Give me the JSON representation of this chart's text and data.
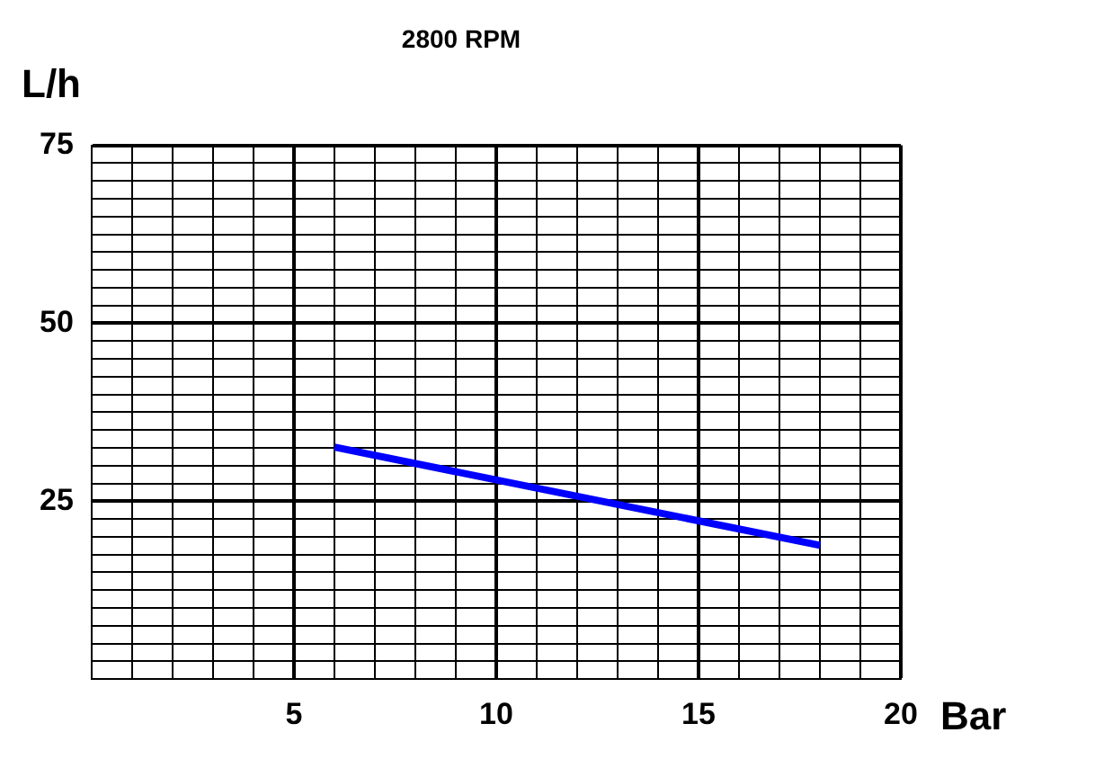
{
  "chart_data": {
    "type": "line",
    "title": "2800 RPM",
    "xlabel": "Bar",
    "ylabel": "L/h",
    "series": [
      {
        "color": "#0000ff",
        "x": [
          6,
          18
        ],
        "values": [
          32.6,
          18.8
        ]
      }
    ],
    "xlim": [
      0,
      20
    ],
    "xticks": [
      {
        "value": 0,
        "label": null
      },
      {
        "value": 1,
        "label": null
      },
      {
        "value": 2,
        "label": null
      },
      {
        "value": 3,
        "label": null
      },
      {
        "value": 4,
        "label": null
      },
      5,
      {
        "value": 6,
        "label": null
      },
      {
        "value": 7,
        "label": null
      },
      {
        "value": 8,
        "label": null
      },
      {
        "value": 9,
        "label": null
      },
      10,
      {
        "value": 11,
        "label": null
      },
      {
        "value": 12,
        "label": null
      },
      {
        "value": 13,
        "label": null
      },
      {
        "value": 14,
        "label": null
      },
      15,
      {
        "value": 16,
        "label": null
      },
      {
        "value": 17,
        "label": null
      },
      {
        "value": 18,
        "label": null
      },
      {
        "value": 19,
        "label": null
      },
      20
    ],
    "ylim": [
      0,
      75
    ],
    "yticks": [
      {
        "value": 0,
        "label": null
      },
      {
        "value": 2.5,
        "label": null
      },
      {
        "value": 5,
        "label": null
      },
      {
        "value": 7.5,
        "label": null
      },
      {
        "value": 10,
        "label": null
      },
      {
        "value": 12.5,
        "label": null
      },
      {
        "value": 15,
        "label": null
      },
      {
        "value": 17.5,
        "label": null
      },
      {
        "value": 20,
        "label": null
      },
      {
        "value": 22.5,
        "label": null
      },
      25,
      {
        "value": 27.5,
        "label": null
      },
      {
        "value": 30,
        "label": null
      },
      {
        "value": 32.5,
        "label": null
      },
      {
        "value": 35,
        "label": null
      },
      {
        "value": 37.5,
        "label": null
      },
      {
        "value": 40,
        "label": null
      },
      {
        "value": 42.5,
        "label": null
      },
      {
        "value": 45,
        "label": null
      },
      {
        "value": 47.5,
        "label": null
      },
      50,
      {
        "value": 52.5,
        "label": null
      },
      {
        "value": 55,
        "label": null
      },
      {
        "value": 57.5,
        "label": null
      },
      {
        "value": 60,
        "label": null
      },
      {
        "value": 62.5,
        "label": null
      },
      {
        "value": 65,
        "label": null
      },
      {
        "value": 67.5,
        "label": null
      },
      {
        "value": 70,
        "label": null
      },
      {
        "value": 72.5,
        "label": null
      },
      75
    ],
    "grid": true,
    "marker": "none",
    "line_style": "solid",
    "legend": false
  }
}
